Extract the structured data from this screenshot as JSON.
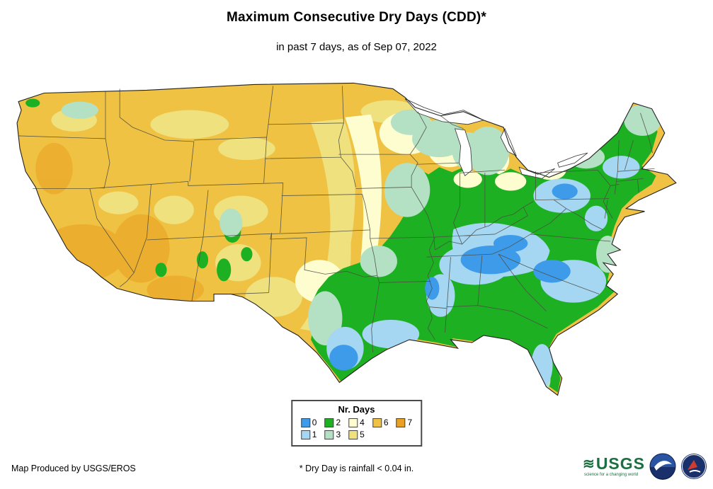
{
  "header": {
    "title": "Maximum Consecutive Dry Days (CDD)*",
    "subtitle": "in past 7 days, as of Sep 07, 2022"
  },
  "legend": {
    "title": "Nr. Days",
    "rows": [
      [
        {
          "label": "0",
          "color": "#3D9BE9"
        },
        {
          "label": "2",
          "color": "#1CB022"
        },
        {
          "label": "4",
          "color": "#FDFDD0"
        },
        {
          "label": "6",
          "color": "#EFC243"
        },
        {
          "label": "7",
          "color": "#E9A124"
        }
      ],
      [
        {
          "label": "1",
          "color": "#A5D7F3"
        },
        {
          "label": "3",
          "color": "#B4E0C4"
        },
        {
          "label": "5",
          "color": "#EFE17E"
        }
      ]
    ]
  },
  "footer": {
    "credit": "Map Produced by USGS/EROS",
    "note": "* Dry Day is rainfall < 0.04 in."
  },
  "logos": {
    "usgs_text": "USGS",
    "usgs_tagline": "science for a changing world"
  }
}
